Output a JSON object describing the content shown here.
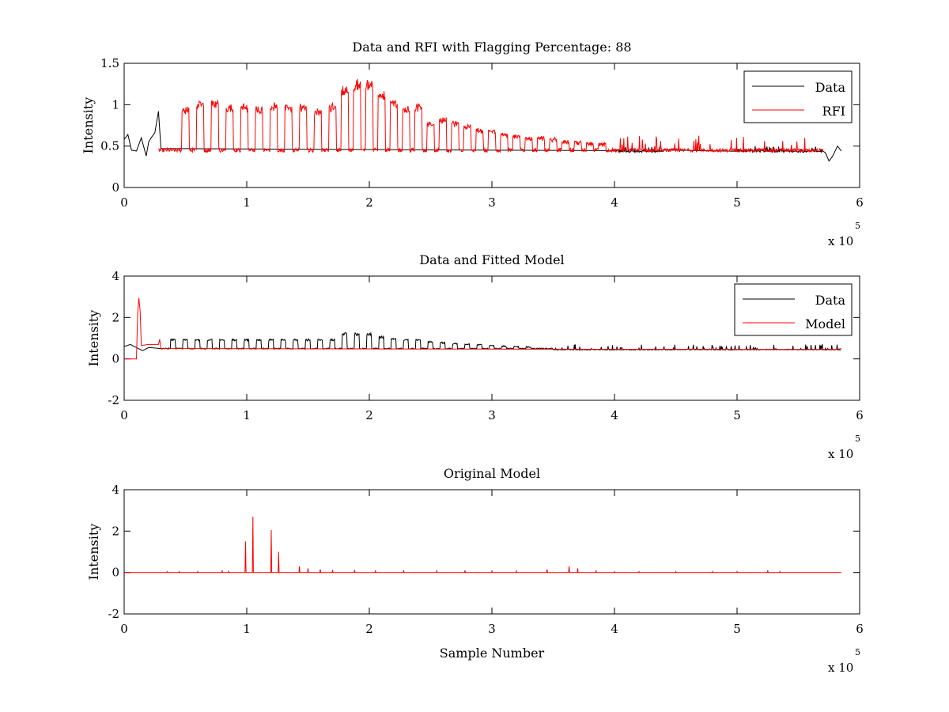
{
  "chart_data": [
    {
      "type": "line",
      "title": "Data and RFI with Flagging Percentage: 88",
      "xlabel": "",
      "ylabel": "Intensity",
      "xlim": [
        0,
        6
      ],
      "ylim": [
        0,
        1.5
      ],
      "xticks": [
        "0",
        "1",
        "2",
        "3",
        "4",
        "5",
        "6"
      ],
      "yticks": [
        "0",
        "0.5",
        "1",
        "1.5"
      ],
      "x_multiplier": {
        "base": "x 10",
        "exponent": "5"
      },
      "legend": {
        "position": "top-right",
        "entries": [
          "Data",
          "RFI"
        ]
      },
      "series": [
        {
          "name": "Data",
          "color": "#000000",
          "x": [
            0,
            0.03,
            0.06,
            0.1,
            0.14,
            0.18,
            0.2,
            0.22,
            0.25,
            0.28,
            0.3,
            4.0,
            4.2,
            4.4,
            5.0,
            5.2,
            5.4,
            5.6,
            5.7,
            5.75,
            5.8,
            5.85
          ],
          "y": [
            0.58,
            0.64,
            0.45,
            0.44,
            0.6,
            0.38,
            0.55,
            0.6,
            0.66,
            0.92,
            0.47,
            0.44,
            0.48,
            0.44,
            0.46,
            0.44,
            0.43,
            0.45,
            0.43,
            0.32,
            0.44,
            0.55
          ]
        },
        {
          "name": "RFI",
          "color": "#ff0000",
          "x_range": [
            0.28,
            5.7
          ],
          "baseline": 0.45,
          "pulse_peaks": [
            [
              0.5,
              0.97
            ],
            [
              0.62,
              1.05
            ],
            [
              0.74,
              1.05
            ],
            [
              0.86,
              1.0
            ],
            [
              0.98,
              1.0
            ],
            [
              1.1,
              0.97
            ],
            [
              1.22,
              1.0
            ],
            [
              1.34,
              1.0
            ],
            [
              1.46,
              1.0
            ],
            [
              1.58,
              0.95
            ],
            [
              1.7,
              1.0
            ],
            [
              1.8,
              1.22
            ],
            [
              1.9,
              1.3
            ],
            [
              2.0,
              1.3
            ],
            [
              2.1,
              1.15
            ],
            [
              2.2,
              1.05
            ],
            [
              2.3,
              0.97
            ],
            [
              2.4,
              1.0
            ],
            [
              2.5,
              0.8
            ],
            [
              2.6,
              0.85
            ],
            [
              2.7,
              0.8
            ],
            [
              2.8,
              0.75
            ],
            [
              2.9,
              0.7
            ],
            [
              3.0,
              0.7
            ],
            [
              3.1,
              0.65
            ],
            [
              3.2,
              0.63
            ],
            [
              3.3,
              0.6
            ],
            [
              3.4,
              0.6
            ],
            [
              3.5,
              0.58
            ],
            [
              3.6,
              0.56
            ],
            [
              3.7,
              0.55
            ],
            [
              3.8,
              0.53
            ],
            [
              3.9,
              0.52
            ]
          ]
        }
      ]
    },
    {
      "type": "line",
      "title": "Data and Fitted Model",
      "xlabel": "",
      "ylabel": "Intensity",
      "xlim": [
        0,
        6
      ],
      "ylim": [
        -2,
        4
      ],
      "xticks": [
        "0",
        "1",
        "2",
        "3",
        "4",
        "5",
        "6"
      ],
      "yticks": [
        "-2",
        "0",
        "2",
        "4"
      ],
      "x_multiplier": {
        "base": "x 10",
        "exponent": "5"
      },
      "legend": {
        "position": "top-right",
        "entries": [
          "Data",
          "Model"
        ]
      },
      "series": [
        {
          "name": "Data",
          "color": "#000000",
          "baseline": 0.5,
          "pulse_peaks": [
            [
              0.4,
              0.95
            ],
            [
              0.5,
              0.95
            ],
            [
              0.6,
              0.95
            ],
            [
              0.7,
              0.95
            ],
            [
              0.8,
              0.95
            ],
            [
              0.9,
              0.95
            ],
            [
              1.0,
              0.95
            ],
            [
              1.1,
              0.95
            ],
            [
              1.2,
              0.95
            ],
            [
              1.3,
              0.95
            ],
            [
              1.4,
              0.95
            ],
            [
              1.5,
              0.95
            ],
            [
              1.6,
              0.95
            ],
            [
              1.7,
              0.95
            ],
            [
              1.8,
              1.25
            ],
            [
              1.9,
              1.25
            ],
            [
              2.0,
              1.25
            ],
            [
              2.1,
              1.1
            ],
            [
              2.2,
              1.0
            ],
            [
              2.3,
              0.95
            ],
            [
              2.4,
              0.95
            ],
            [
              2.5,
              0.85
            ],
            [
              2.6,
              0.8
            ],
            [
              2.7,
              0.75
            ],
            [
              2.8,
              0.72
            ],
            [
              2.9,
              0.7
            ],
            [
              3.0,
              0.65
            ],
            [
              3.1,
              0.62
            ],
            [
              3.2,
              0.6
            ],
            [
              3.3,
              0.58
            ]
          ]
        },
        {
          "name": "Model",
          "color": "#ff0000",
          "x": [
            0,
            0.1,
            0.11,
            0.12,
            0.13,
            0.14,
            0.2,
            0.28,
            0.29,
            0.3,
            5.8,
            5.85
          ],
          "y": [
            0.0,
            0.0,
            2.2,
            2.95,
            2.3,
            0.65,
            0.7,
            0.7,
            0.95,
            0.5,
            0.45,
            0.5
          ]
        }
      ]
    },
    {
      "type": "line",
      "title": "Original Model",
      "xlabel": "Sample Number",
      "ylabel": "Intensity",
      "xlim": [
        0,
        6
      ],
      "ylim": [
        -2,
        4
      ],
      "xticks": [
        "0",
        "1",
        "2",
        "3",
        "4",
        "5",
        "6"
      ],
      "yticks": [
        "-2",
        "0",
        "2",
        "4"
      ],
      "x_multiplier": {
        "base": "x 10",
        "exponent": "5"
      },
      "series": [
        {
          "name": "",
          "color": "#ff0000",
          "baseline": 0,
          "x_range": [
            0,
            5.85
          ],
          "spikes": [
            [
              0.35,
              0.05
            ],
            [
              0.45,
              0.05
            ],
            [
              0.6,
              0.05
            ],
            [
              0.8,
              0.08
            ],
            [
              0.85,
              0.06
            ],
            [
              0.99,
              1.5
            ],
            [
              1.05,
              2.7
            ],
            [
              1.2,
              2.05
            ],
            [
              1.26,
              1.0
            ],
            [
              1.43,
              0.3
            ],
            [
              1.5,
              0.2
            ],
            [
              1.6,
              0.15
            ],
            [
              1.7,
              0.12
            ],
            [
              1.88,
              0.12
            ],
            [
              2.05,
              0.1
            ],
            [
              2.28,
              0.1
            ],
            [
              2.55,
              0.08
            ],
            [
              2.78,
              0.1
            ],
            [
              3.0,
              0.08
            ],
            [
              3.2,
              0.08
            ],
            [
              3.45,
              0.15
            ],
            [
              3.63,
              0.3
            ],
            [
              3.7,
              0.2
            ],
            [
              3.85,
              0.08
            ],
            [
              4.0,
              0.05
            ],
            [
              4.2,
              0.05
            ],
            [
              4.5,
              0.05
            ],
            [
              4.8,
              0.05
            ],
            [
              5.0,
              0.05
            ],
            [
              5.25,
              0.1
            ],
            [
              5.35,
              0.05
            ]
          ]
        }
      ]
    }
  ]
}
